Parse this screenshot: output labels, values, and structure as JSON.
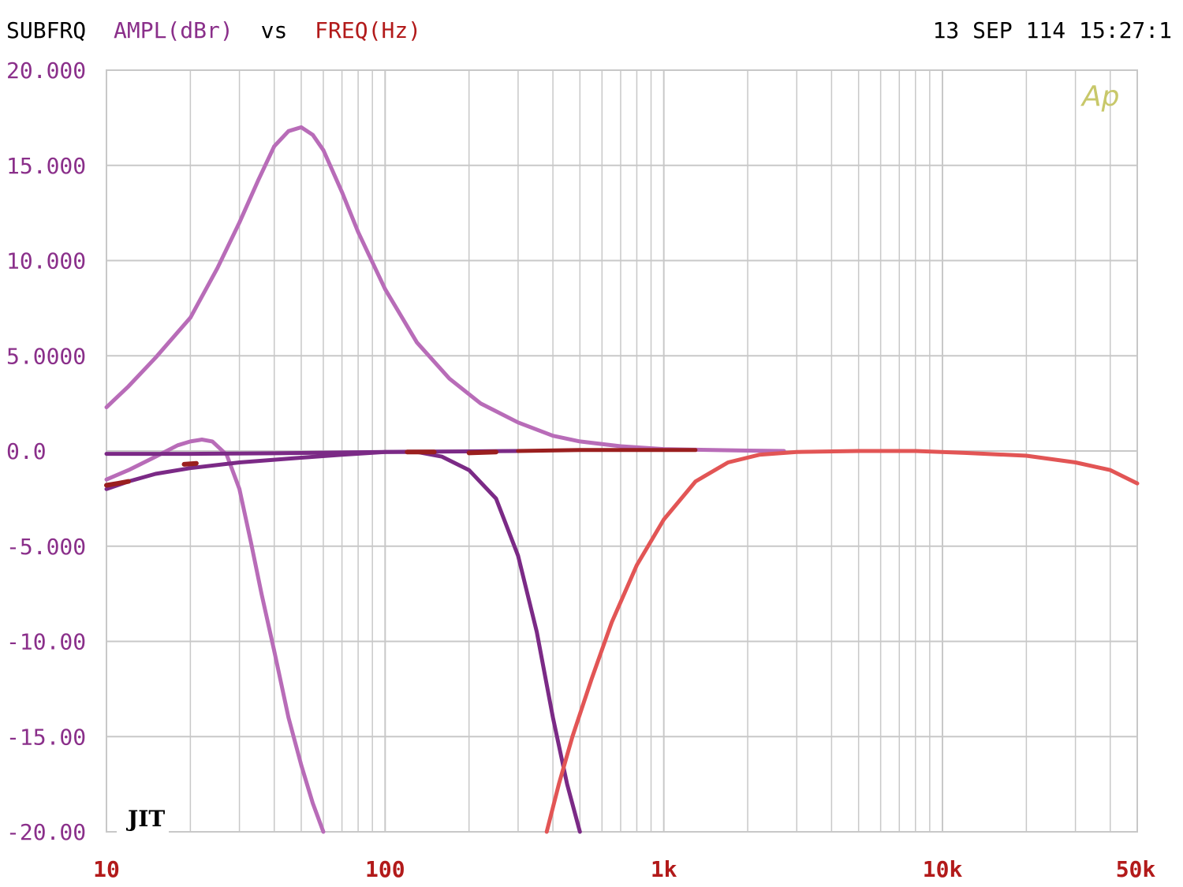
{
  "header": {
    "left_prefix": "SUBFRQ",
    "y_label": "AMPL(dBr)",
    "vs": "vs",
    "x_label": "FREQ(Hz)",
    "timestamp": "13 SEP 114 15:27:1"
  },
  "logo_text": "Ap",
  "signature": "JIT",
  "colors": {
    "grid": "#c8c8c8",
    "y_text": "#8a2f8a",
    "x_text": "#b21a1a",
    "header_y": "#8a2f8a",
    "header_x": "#b21a1a",
    "logo": "#c8c86a"
  },
  "chart_data": {
    "type": "line",
    "title": "SUBFRQ AMPL(dBr) vs FREQ(Hz)",
    "xlabel": "FREQ(Hz)",
    "ylabel": "AMPL(dBr)",
    "x_scale": "log",
    "xlim": [
      10,
      50000
    ],
    "ylim": [
      -20,
      20
    ],
    "grid": true,
    "x_tick_labels": [
      {
        "value": 10,
        "label": "10"
      },
      {
        "value": 100,
        "label": "100"
      },
      {
        "value": 1000,
        "label": "1k"
      },
      {
        "value": 10000,
        "label": "10k"
      },
      {
        "value": 50000,
        "label": "50k"
      }
    ],
    "y_tick_labels": [
      {
        "value": 20,
        "label": "20.000"
      },
      {
        "value": 15,
        "label": "15.000"
      },
      {
        "value": 10,
        "label": "10.000"
      },
      {
        "value": 5,
        "label": "5.0000"
      },
      {
        "value": 0,
        "label": "0.0"
      },
      {
        "value": -5,
        "label": "-5.000"
      },
      {
        "value": -10,
        "label": "-10.00"
      },
      {
        "value": -15,
        "label": "-15.00"
      },
      {
        "value": -20,
        "label": "-20.00"
      }
    ],
    "series": [
      {
        "color": "#b86cb8",
        "x": [
          10,
          12,
          15,
          20,
          25,
          30,
          35,
          40,
          45,
          50,
          55,
          60,
          70,
          80,
          100,
          130,
          170,
          220,
          300,
          400,
          500,
          700,
          1000,
          1500,
          2000,
          2700
        ],
        "y": [
          2.3,
          3.4,
          4.9,
          7.0,
          9.6,
          12.0,
          14.2,
          16.0,
          16.8,
          17.0,
          16.6,
          15.8,
          13.6,
          11.5,
          8.5,
          5.7,
          3.8,
          2.5,
          1.5,
          0.8,
          0.5,
          0.25,
          0.1,
          0.05,
          0.02,
          0.0
        ]
      },
      {
        "color": "#b86cb8",
        "x": [
          10,
          12,
          15,
          18,
          20,
          22,
          24,
          27,
          30,
          33,
          36,
          40,
          45,
          50,
          55,
          60
        ],
        "y": [
          -1.5,
          -1.0,
          -0.3,
          0.3,
          0.5,
          0.6,
          0.5,
          -0.2,
          -2.0,
          -4.8,
          -7.5,
          -10.5,
          -14.0,
          -16.5,
          -18.5,
          -20.0
        ]
      },
      {
        "color": "#7b2a86",
        "x": [
          10,
          12,
          15,
          20,
          30,
          50,
          70,
          100,
          130,
          160,
          200,
          250,
          300,
          350,
          400,
          450,
          500
        ],
        "y": [
          -2.0,
          -1.6,
          -1.2,
          -0.9,
          -0.6,
          -0.35,
          -0.2,
          -0.05,
          -0.05,
          -0.3,
          -1.0,
          -2.5,
          -5.5,
          -9.5,
          -14.0,
          -17.5,
          -20.0
        ]
      },
      {
        "color": "#7b2a86",
        "x": [
          10,
          20,
          40,
          70,
          100,
          150,
          200,
          300
        ],
        "y": [
          -0.15,
          -0.15,
          -0.12,
          -0.08,
          -0.05,
          -0.03,
          -0.02,
          0.0
        ]
      },
      {
        "color": "#9a1f1f",
        "x": [
          10,
          11,
          12
        ],
        "y": [
          -1.8,
          -1.7,
          -1.6
        ]
      },
      {
        "color": "#9a1f1f",
        "x": [
          19,
          21
        ],
        "y": [
          -0.7,
          -0.65
        ]
      },
      {
        "color": "#9a1f1f",
        "x": [
          120,
          150
        ],
        "y": [
          -0.05,
          -0.05
        ]
      },
      {
        "color": "#9a1f1f",
        "x": [
          200,
          250
        ],
        "y": [
          -0.1,
          -0.05
        ]
      },
      {
        "color": "#9a1f1f",
        "x": [
          300,
          500,
          800,
          1300
        ],
        "y": [
          0.0,
          0.05,
          0.05,
          0.05
        ]
      },
      {
        "color": "#e25555",
        "x": [
          380,
          420,
          470,
          550,
          650,
          800,
          1000,
          1300,
          1700,
          2200,
          3000,
          5000,
          8000,
          12000,
          20000,
          30000,
          40000,
          50000
        ],
        "y": [
          -20.0,
          -17.5,
          -15.0,
          -12.0,
          -9.0,
          -6.0,
          -3.6,
          -1.6,
          -0.6,
          -0.2,
          -0.05,
          0.0,
          0.0,
          -0.1,
          -0.25,
          -0.6,
          -1.0,
          -1.7
        ]
      }
    ]
  }
}
